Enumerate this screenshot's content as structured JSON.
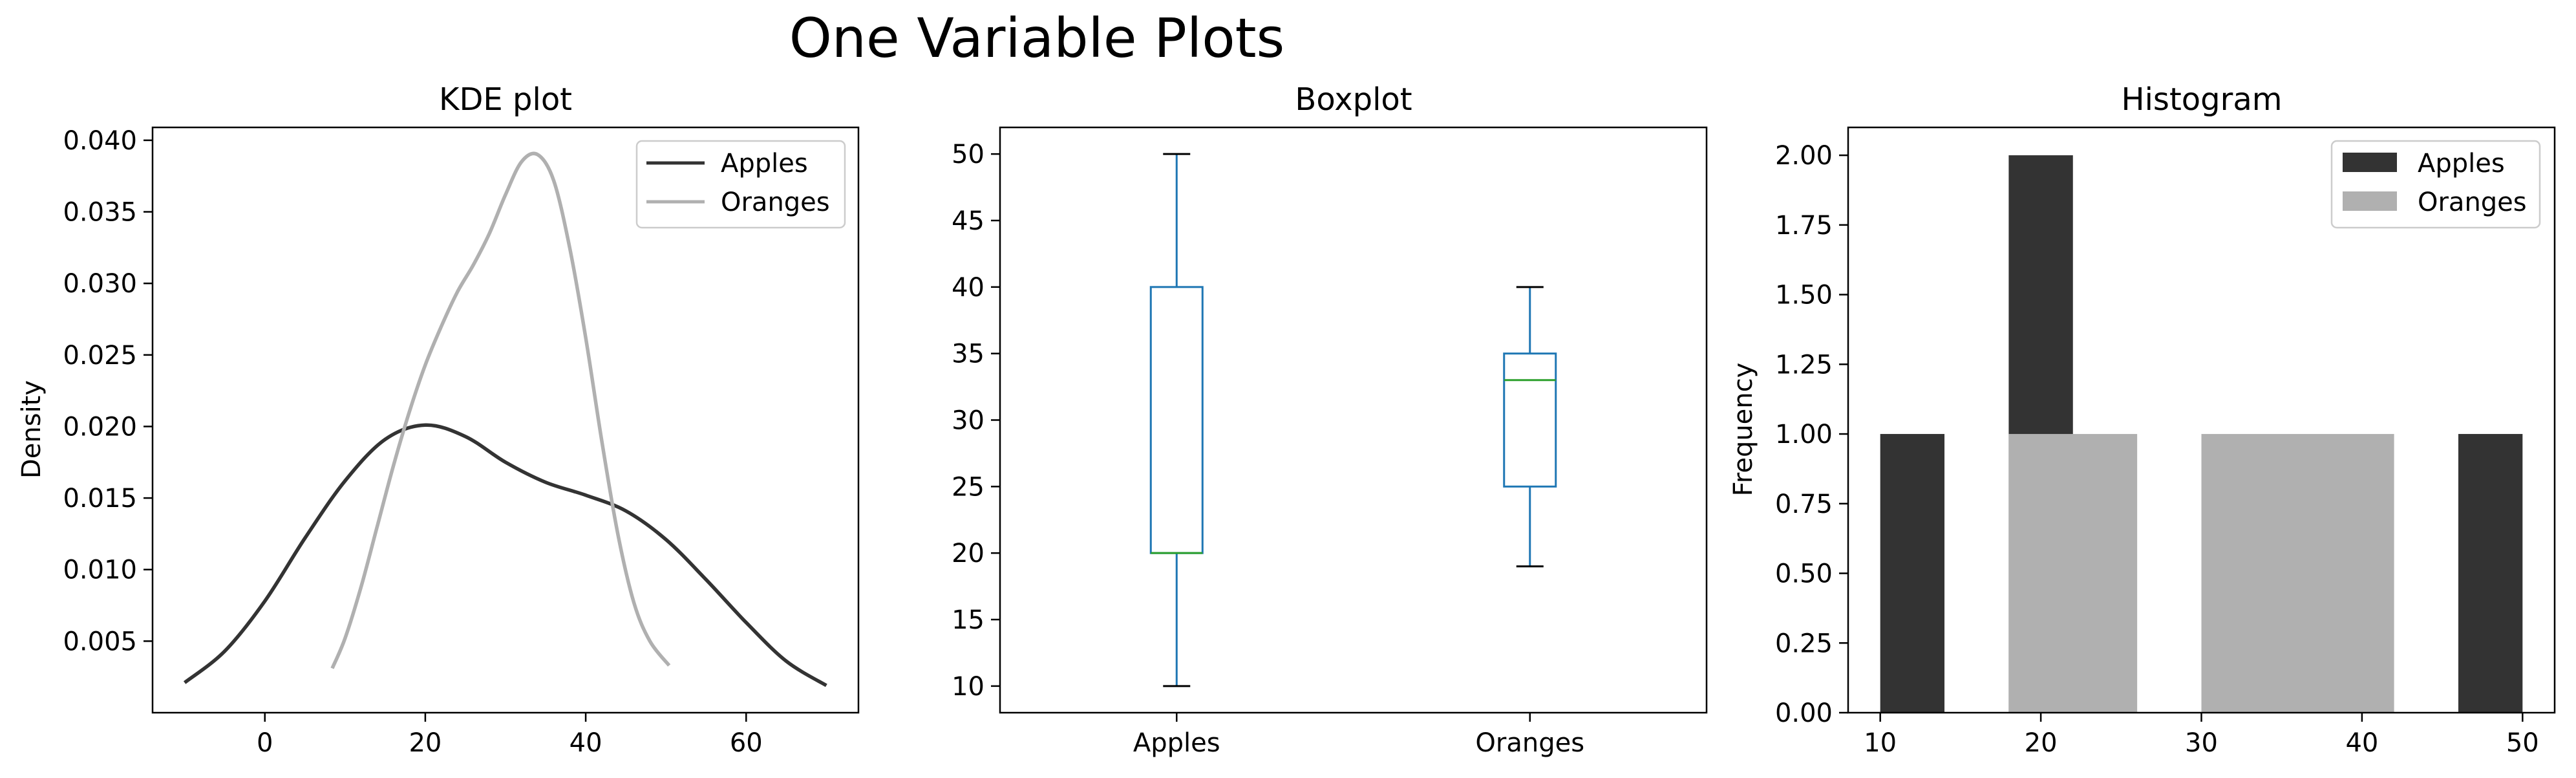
{
  "figure": {
    "title": "One Variable Plots"
  },
  "chart_data": [
    {
      "type": "line",
      "subtype": "kde",
      "title": "KDE plot",
      "xlabel": "",
      "ylabel": "Density",
      "xlim": [
        -14,
        74
      ],
      "ylim": [
        0,
        0.0409
      ],
      "xticks": [
        0,
        20,
        40,
        60
      ],
      "yticks": [
        0.005,
        0.01,
        0.015,
        0.02,
        0.025,
        0.03,
        0.035,
        0.04
      ],
      "ytick_labels": [
        "0.005",
        "0.010",
        "0.015",
        "0.020",
        "0.025",
        "0.030",
        "0.035",
        "0.040"
      ],
      "legend": "top-right",
      "series": [
        {
          "name": "Apples",
          "color": "#333333",
          "x": [
            -10,
            -5,
            0,
            5,
            10,
            15,
            20,
            25,
            30,
            35,
            40,
            45,
            50,
            55,
            60,
            65,
            70
          ],
          "y": [
            0.0021,
            0.0043,
            0.0078,
            0.0122,
            0.0162,
            0.0191,
            0.0201,
            0.0193,
            0.0175,
            0.0161,
            0.0152,
            0.0141,
            0.0121,
            0.0093,
            0.0063,
            0.0036,
            0.0019
          ]
        },
        {
          "name": "Oranges",
          "color": "#b0b0b0",
          "x": [
            8.4,
            10,
            12,
            14,
            16,
            18,
            20,
            22,
            24,
            26,
            28,
            30,
            32,
            34,
            36,
            38,
            40,
            42,
            44,
            46,
            48,
            50.4
          ],
          "y": [
            0.0031,
            0.0052,
            0.0088,
            0.013,
            0.0172,
            0.021,
            0.0243,
            0.027,
            0.0294,
            0.0313,
            0.0335,
            0.0362,
            0.0385,
            0.039,
            0.0372,
            0.0325,
            0.0262,
            0.019,
            0.0125,
            0.0077,
            0.005,
            0.0033
          ]
        }
      ]
    },
    {
      "type": "box",
      "title": "Boxplot",
      "xlabel": "",
      "ylabel": "",
      "ylim": [
        8,
        52
      ],
      "yticks": [
        10,
        15,
        20,
        25,
        30,
        35,
        40,
        45,
        50
      ],
      "categories": [
        "Apples",
        "Oranges"
      ],
      "box_color": "#1f77b4",
      "median_color": "#2ca02c",
      "boxes": [
        {
          "name": "Apples",
          "whislo": 10,
          "q1": 20,
          "med": 20,
          "q3": 40,
          "whishi": 50
        },
        {
          "name": "Oranges",
          "whislo": 19,
          "q1": 25,
          "med": 33,
          "q3": 35,
          "whishi": 40
        }
      ]
    },
    {
      "type": "bar",
      "subtype": "histogram",
      "title": "Histogram",
      "xlabel": "",
      "ylabel": "Frequency",
      "xlim": [
        8,
        52
      ],
      "ylim": [
        0,
        2.1
      ],
      "xticks": [
        10,
        20,
        30,
        40,
        50
      ],
      "yticks": [
        0.0,
        0.25,
        0.5,
        0.75,
        1.0,
        1.25,
        1.5,
        1.75,
        2.0
      ],
      "ytick_labels": [
        "0.00",
        "0.25",
        "0.50",
        "0.75",
        "1.00",
        "1.25",
        "1.50",
        "1.75",
        "2.00"
      ],
      "legend": "top-right",
      "series": [
        {
          "name": "Apples",
          "color": "#333333",
          "bins": [
            [
              10,
              14,
              1
            ],
            [
              18,
              22,
              2
            ],
            [
              46,
              50,
              1
            ]
          ]
        },
        {
          "name": "Oranges",
          "color": "#b0b0b0",
          "bins": [
            [
              18,
              26,
              1
            ],
            [
              30,
              42,
              1
            ]
          ]
        }
      ]
    }
  ]
}
